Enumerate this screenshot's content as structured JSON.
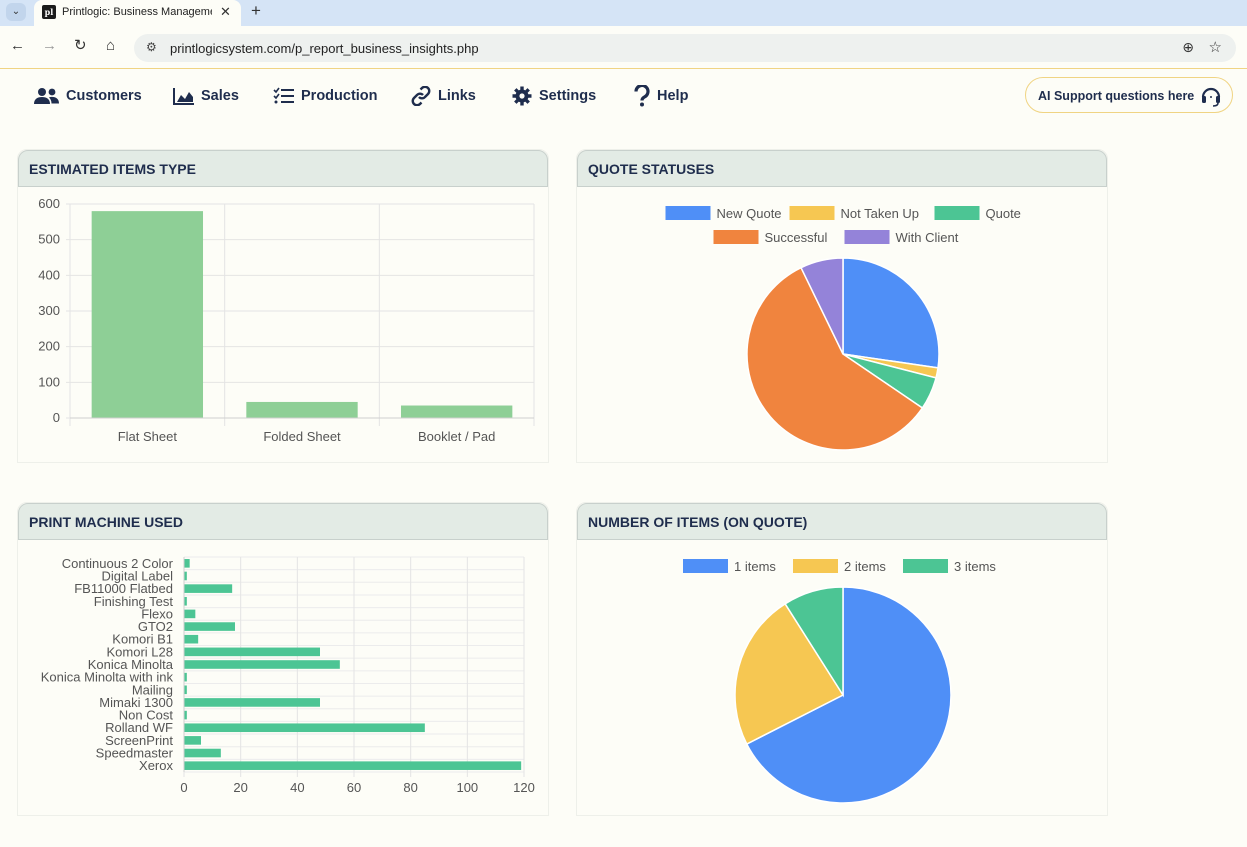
{
  "browser": {
    "tab_title": "Printlogic: Business Manageme",
    "tab_favicon": "pl",
    "url": "printlogicsystem.com/p_report_business_insights.php"
  },
  "nav": {
    "customers": "Customers",
    "sales": "Sales",
    "production": "Production",
    "links": "Links",
    "settings": "Settings",
    "help": "Help",
    "ai_support": "AI Support questions here"
  },
  "panels": {
    "estimated_items": "ESTIMATED ITEMS TYPE",
    "quote_statuses": "QUOTE STATUSES",
    "print_machine": "PRINT MACHINE USED",
    "number_items": "NUMBER OF ITEMS (ON QUOTE)"
  },
  "colors": {
    "green_bar": "#8ecf96",
    "teal_bar": "#4cc594",
    "blue": "#4f8ff7",
    "yellow": "#f6c752",
    "teal": "#4cc594",
    "orange": "#f0843e",
    "purple": "#9483d9"
  },
  "chart_data": [
    {
      "type": "bar",
      "title": "ESTIMATED ITEMS TYPE",
      "categories": [
        "Flat Sheet",
        "Folded Sheet",
        "Booklet / Pad"
      ],
      "values": [
        580,
        45,
        35
      ],
      "yticks": [
        "0",
        "100",
        "200",
        "300",
        "400",
        "500",
        "600"
      ],
      "ylim": [
        0,
        600
      ]
    },
    {
      "type": "pie",
      "title": "QUOTE STATUSES",
      "labels": [
        "New Quote",
        "Not Taken Up",
        "Quote",
        "Successful",
        "With Client"
      ],
      "values": [
        27.3,
        1.7,
        5.5,
        58.3,
        7.2
      ]
    },
    {
      "type": "bar",
      "orientation": "horizontal",
      "title": "PRINT MACHINE USED",
      "categories": [
        "Continuous 2 Color",
        "Digital Label",
        "FB11000 Flatbed",
        "Finishing Test",
        "Flexo",
        "GTO2",
        "Komori B1",
        "Komori L28",
        "Konica Minolta",
        "Konica Minolta with ink",
        "Mailing",
        "Mimaki 1300",
        "Non Cost",
        "Rolland WF",
        "ScreenPrint",
        "Speedmaster",
        "Xerox"
      ],
      "values": [
        2,
        1,
        17,
        1,
        4,
        18,
        5,
        48,
        55,
        1,
        1,
        48,
        1,
        85,
        6,
        13,
        119
      ],
      "xticks": [
        "0",
        "20",
        "40",
        "60",
        "80",
        "100",
        "120"
      ],
      "xlim": [
        0,
        120
      ]
    },
    {
      "type": "pie",
      "title": "NUMBER OF ITEMS (ON QUOTE)",
      "labels": [
        "1 items",
        "2 items",
        "3 items"
      ],
      "values": [
        67.5,
        23.5,
        9.0
      ]
    }
  ]
}
